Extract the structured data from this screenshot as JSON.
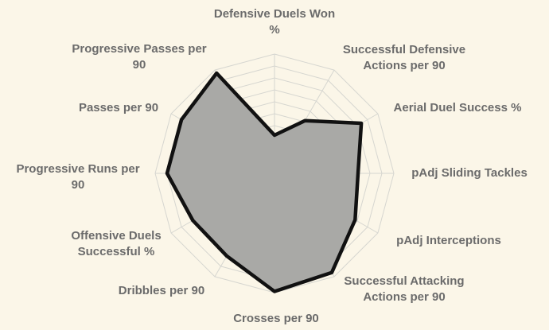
{
  "chart_data": {
    "type": "radar",
    "title": "",
    "rmax": 100,
    "grid_rings": 10,
    "grid": true,
    "categories": [
      "Defensive Duels Won %",
      "Successful Defensive Actions per 90",
      "Aerial Duel Success %",
      "pAdj Sliding Tackles",
      "pAdj Interceptions",
      "Successful Attacking Actions per 90",
      "Crosses per 90",
      "Dribbles per 90",
      "Offensive Duels Successful %",
      "Progressive Runs per 90",
      "Passes per 90",
      "Progressive Passes per 90"
    ],
    "label_lines": [
      [
        "Defensive Duels Won",
        "%"
      ],
      [
        "Successful Defensive",
        "Actions per 90"
      ],
      [
        "Aerial Duel Success %"
      ],
      [
        "pAdj Sliding Tackles"
      ],
      [
        "pAdj Interceptions"
      ],
      [
        "Successful Attacking",
        "Actions per 90"
      ],
      [
        "Crosses per 90"
      ],
      [
        "Dribbles per 90"
      ],
      [
        "Offensive Duels",
        "Successful %"
      ],
      [
        "Progressive Runs per",
        "90"
      ],
      [
        "Passes per 90"
      ],
      [
        "Progressive Passes per",
        "90"
      ]
    ],
    "series": [
      {
        "values": [
          32,
          51,
          84,
          70,
          78,
          96,
          99,
          80,
          79,
          90,
          90,
          97
        ]
      }
    ]
  },
  "colors": {
    "background": "#fbf6e8",
    "grid": "#d6d6d0",
    "fill": "#a9a9a6",
    "stroke": "#111111",
    "label": "#6b6b6b"
  }
}
